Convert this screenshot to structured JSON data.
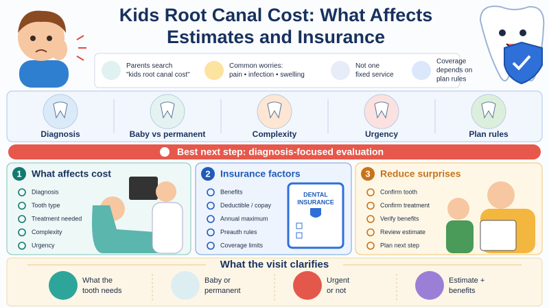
{
  "header": {
    "title_lines": [
      "Kids Root Canal Cost: What Affects",
      "Estimates and Insurance"
    ]
  },
  "info_bar": [
    {
      "lines": [
        "Parents search",
        "\"kids root canal cost\""
      ]
    },
    {
      "lines": [
        "Common worries:",
        "pain • infection • swelling"
      ]
    },
    {
      "lines": [
        "Not one",
        "fixed service"
      ]
    },
    {
      "lines": [
        "Coverage",
        "depends on",
        "plan rules"
      ]
    }
  ],
  "factors": [
    "Diagnosis",
    "Baby vs permanent",
    "Complexity",
    "Urgency",
    "Plan rules"
  ],
  "banner": "Best next step: diagnosis-focused evaluation",
  "panels": [
    {
      "number": "1",
      "title": "What affects cost",
      "items": [
        "Diagnosis",
        "Tooth type",
        "Treatment needed",
        "Complexity",
        "Urgency"
      ]
    },
    {
      "number": "2",
      "title": "Insurance factors",
      "items": [
        "Benefits",
        "Deductible / copay",
        "Annual maximum",
        "Preauth rules",
        "Coverage limits"
      ],
      "card": [
        "DENTAL",
        "INSURANCE"
      ]
    },
    {
      "number": "3",
      "title": "Reduce surprises",
      "items": [
        "Confirm tooth",
        "Confirm treatment",
        "Verify benefits",
        "Review estimate",
        "Plan next step"
      ]
    }
  ],
  "clarifies": {
    "title": "What the visit clarifies",
    "items": [
      {
        "lines": [
          "What the",
          "tooth needs"
        ]
      },
      {
        "lines": [
          "Baby or",
          "permanent"
        ]
      },
      {
        "lines": [
          "Urgent",
          "or not"
        ]
      },
      {
        "lines": [
          "Estimate +",
          "benefits"
        ]
      }
    ]
  }
}
